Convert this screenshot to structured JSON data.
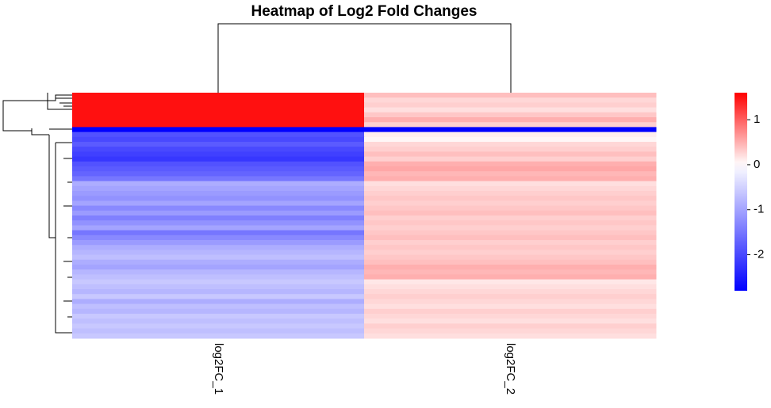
{
  "chart_data": {
    "type": "heatmap",
    "title": "Heatmap of Log2 Fold Changes",
    "columns": [
      "log2FC_1",
      "log2FC_2"
    ],
    "rows": [
      [
        1.5,
        0.4
      ],
      [
        1.5,
        0.25
      ],
      [
        1.5,
        0.3
      ],
      [
        1.5,
        0.2
      ],
      [
        1.5,
        0.35
      ],
      [
        1.5,
        0.5
      ],
      [
        1.5,
        0.3
      ],
      [
        -2.8,
        -2.8
      ],
      [
        -1.9,
        0.1
      ],
      [
        -2.0,
        0.05
      ],
      [
        -1.8,
        0.25
      ],
      [
        -2.0,
        0.3
      ],
      [
        -2.1,
        0.4
      ],
      [
        -2.2,
        0.3
      ],
      [
        -1.9,
        0.5
      ],
      [
        -1.8,
        0.55
      ],
      [
        -1.7,
        0.45
      ],
      [
        -1.5,
        0.5
      ],
      [
        -0.9,
        0.2
      ],
      [
        -1.0,
        0.25
      ],
      [
        -1.1,
        0.3
      ],
      [
        -1.2,
        0.35
      ],
      [
        -1.0,
        0.3
      ],
      [
        -1.3,
        0.35
      ],
      [
        -1.1,
        0.4
      ],
      [
        -1.4,
        0.3
      ],
      [
        -1.2,
        0.35
      ],
      [
        -1.0,
        0.3
      ],
      [
        -1.5,
        0.35
      ],
      [
        -1.3,
        0.4
      ],
      [
        -1.1,
        0.3
      ],
      [
        -0.9,
        0.35
      ],
      [
        -0.8,
        0.3
      ],
      [
        -0.7,
        0.35
      ],
      [
        -0.9,
        0.4
      ],
      [
        -1.0,
        0.5
      ],
      [
        -0.8,
        0.45
      ],
      [
        -0.7,
        0.5
      ],
      [
        -0.6,
        0.15
      ],
      [
        -0.7,
        0.2
      ],
      [
        -0.8,
        0.25
      ],
      [
        -0.6,
        0.3
      ],
      [
        -0.9,
        0.25
      ],
      [
        -0.7,
        0.2
      ],
      [
        -0.8,
        0.3
      ],
      [
        -0.6,
        0.25
      ],
      [
        -0.7,
        0.2
      ],
      [
        -0.6,
        0.3
      ],
      [
        -0.7,
        0.25
      ],
      [
        -0.6,
        0.2
      ]
    ],
    "colors": {
      "low": "#0000ff",
      "mid": "#ffffff",
      "high": "#ff0000"
    },
    "colorbar": {
      "lim": [
        -2.8,
        1.6
      ],
      "ticks": [
        -2,
        -1,
        0,
        1
      ]
    }
  }
}
